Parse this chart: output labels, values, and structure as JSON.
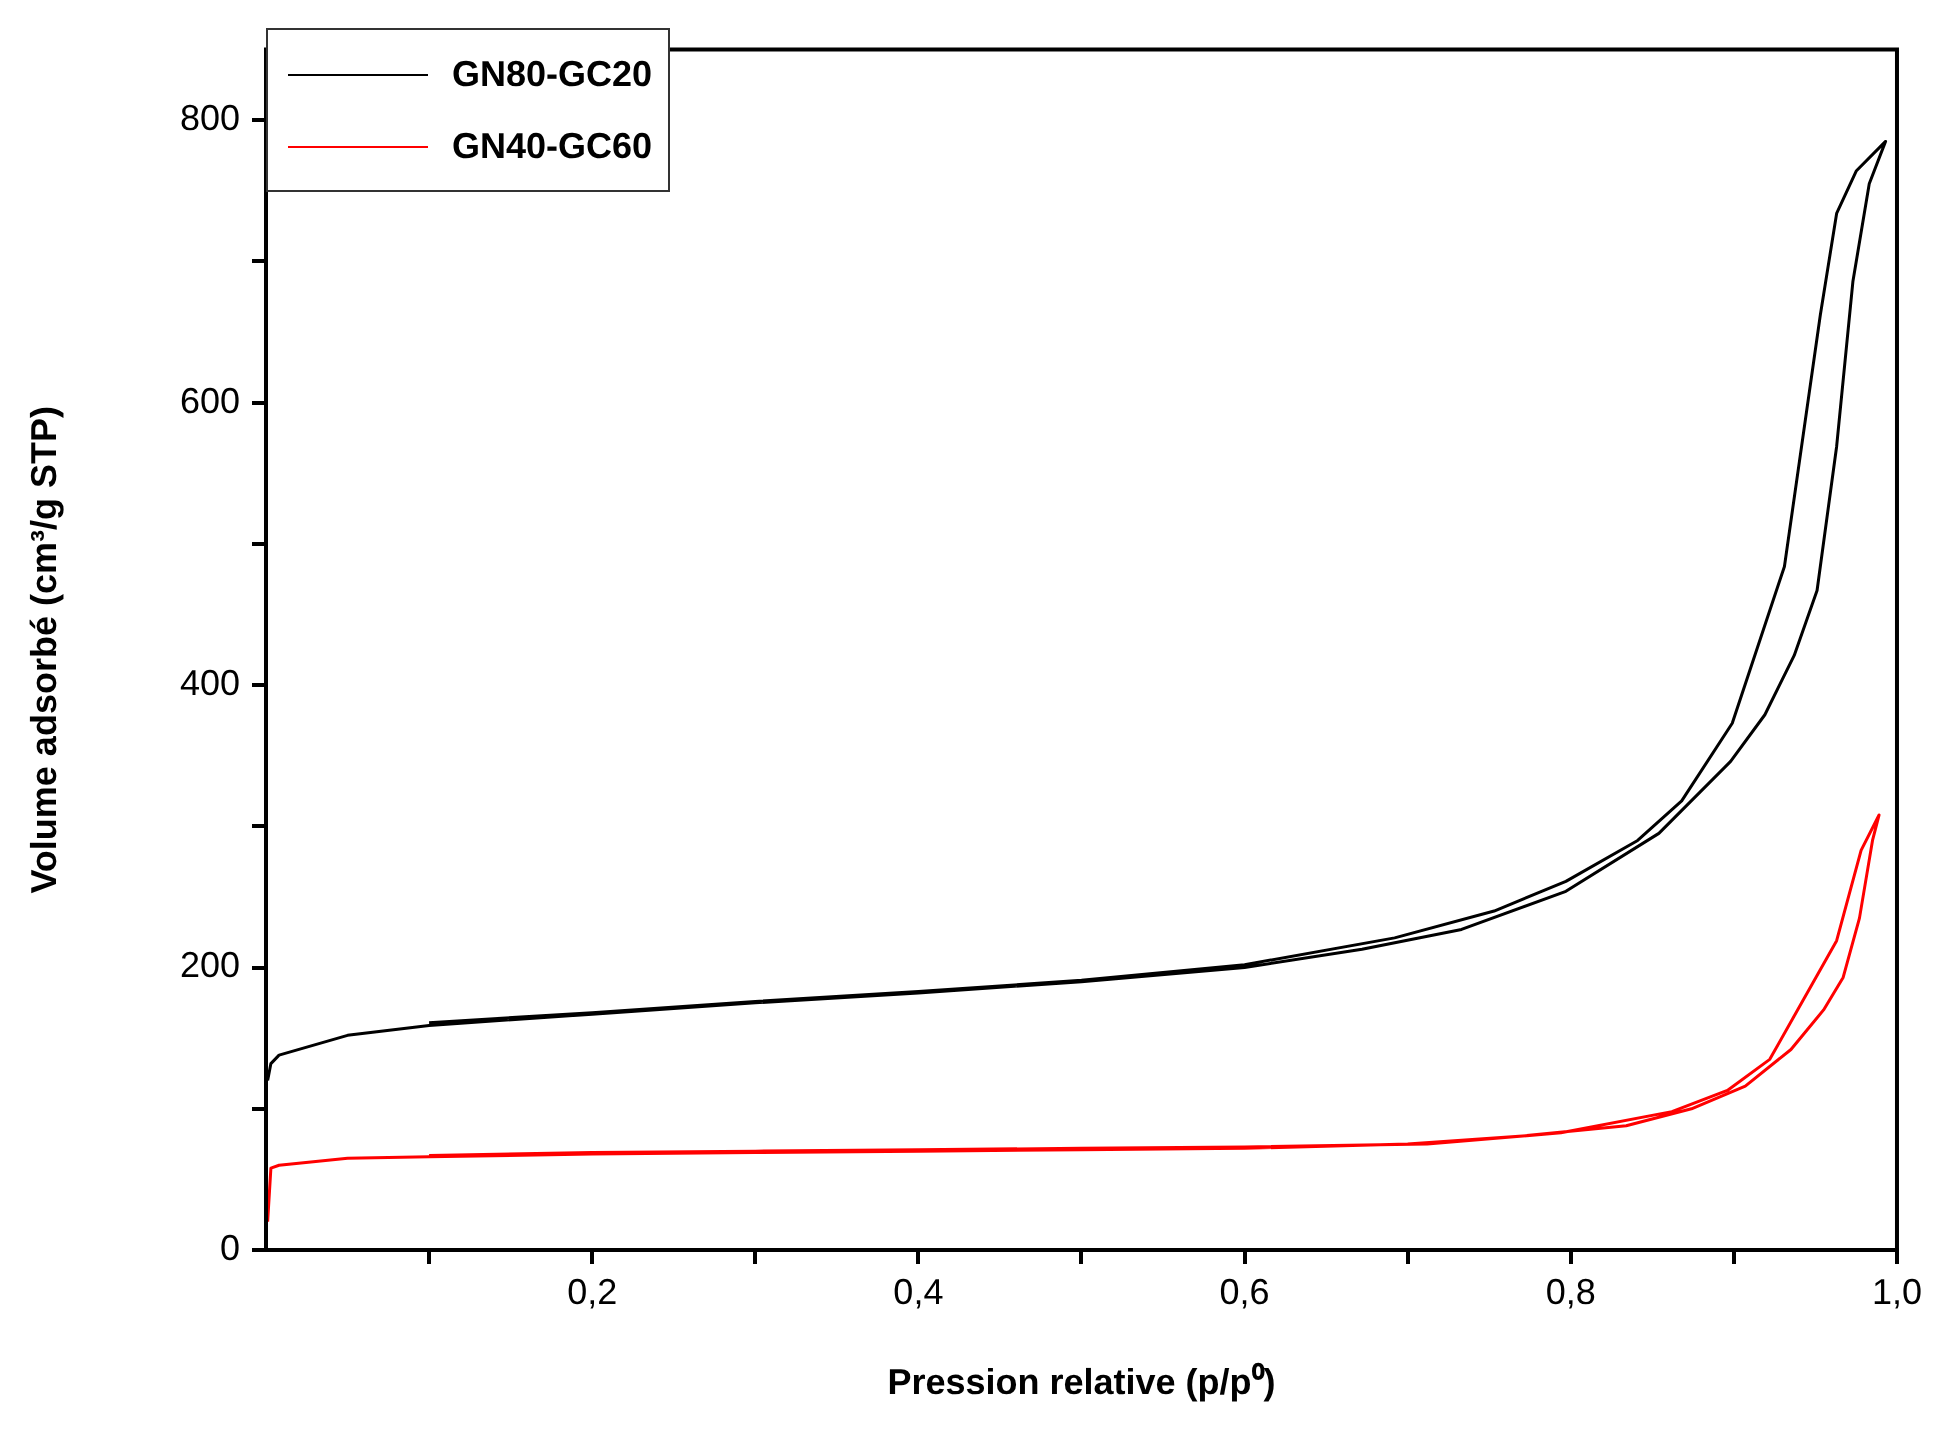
{
  "chart_data": {
    "type": "line",
    "xlabel": "Pression relative (p/p⁰)",
    "ylabel": "Volume adsorbé (cm³/g STP)",
    "xlim": [
      0,
      1.0
    ],
    "ylim": [
      0,
      850
    ],
    "xticks": [
      {
        "value": 0.1,
        "label": null
      },
      {
        "value": 0.2,
        "label": "0,2"
      },
      {
        "value": 0.3,
        "label": null
      },
      {
        "value": 0.4,
        "label": "0,4"
      },
      {
        "value": 0.5,
        "label": null
      },
      {
        "value": 0.6,
        "label": "0,6"
      },
      {
        "value": 0.7,
        "label": null
      },
      {
        "value": 0.8,
        "label": "0,8"
      },
      {
        "value": 0.9,
        "label": null
      },
      {
        "value": 1.0,
        "label": "1,0"
      }
    ],
    "yticks": [
      0,
      {
        "value": 100,
        "label": null
      },
      200,
      {
        "value": 300,
        "label": null
      },
      400,
      {
        "value": 500,
        "label": null
      },
      600,
      {
        "value": 700,
        "label": null
      },
      800
    ],
    "grid": false,
    "legend": "top left",
    "marker": "none",
    "line_style": "solid",
    "series": [
      {
        "name": "GN80-GC20",
        "color": "#000000",
        "x": [
          0.001,
          0.003,
          0.008,
          0.05,
          0.1,
          0.2,
          0.3,
          0.4,
          0.5,
          0.6,
          0.672,
          0.733,
          0.797,
          0.854,
          0.898,
          0.919,
          0.937,
          0.951,
          0.963,
          0.973,
          0.983,
          0.993,
          0.975,
          0.963,
          0.953,
          0.931,
          0.899,
          0.868,
          0.841,
          0.797,
          0.753,
          0.692,
          0.6,
          0.5,
          0.4,
          0.3,
          0.2,
          0.1
        ],
        "values": [
          120,
          132,
          138,
          152,
          159,
          167,
          175,
          182,
          190,
          200,
          213,
          227,
          254,
          295,
          346,
          379,
          421,
          467,
          569,
          686,
          755,
          785,
          764,
          734,
          662,
          484,
          373,
          318,
          290,
          261,
          240,
          221,
          202,
          191,
          183,
          176,
          168,
          161
        ]
      },
      {
        "name": "GN40-GC60",
        "color": "#ff0000",
        "x": [
          0.001,
          0.003,
          0.008,
          0.05,
          0.1,
          0.2,
          0.3,
          0.4,
          0.5,
          0.6,
          0.7,
          0.773,
          0.834,
          0.874,
          0.907,
          0.935,
          0.955,
          0.967,
          0.977,
          0.985,
          0.989,
          0.978,
          0.963,
          0.922,
          0.896,
          0.862,
          0.794,
          0.712,
          0.6,
          0.5,
          0.4,
          0.3,
          0.2,
          0.1
        ],
        "values": [
          20,
          58,
          60,
          65,
          66,
          68,
          69,
          70,
          71,
          72,
          75,
          81,
          88,
          100,
          116,
          142,
          170,
          193,
          235,
          290,
          308,
          283,
          219,
          135,
          113,
          98,
          83,
          75,
          73,
          72,
          71,
          70,
          69,
          67
        ]
      }
    ]
  }
}
